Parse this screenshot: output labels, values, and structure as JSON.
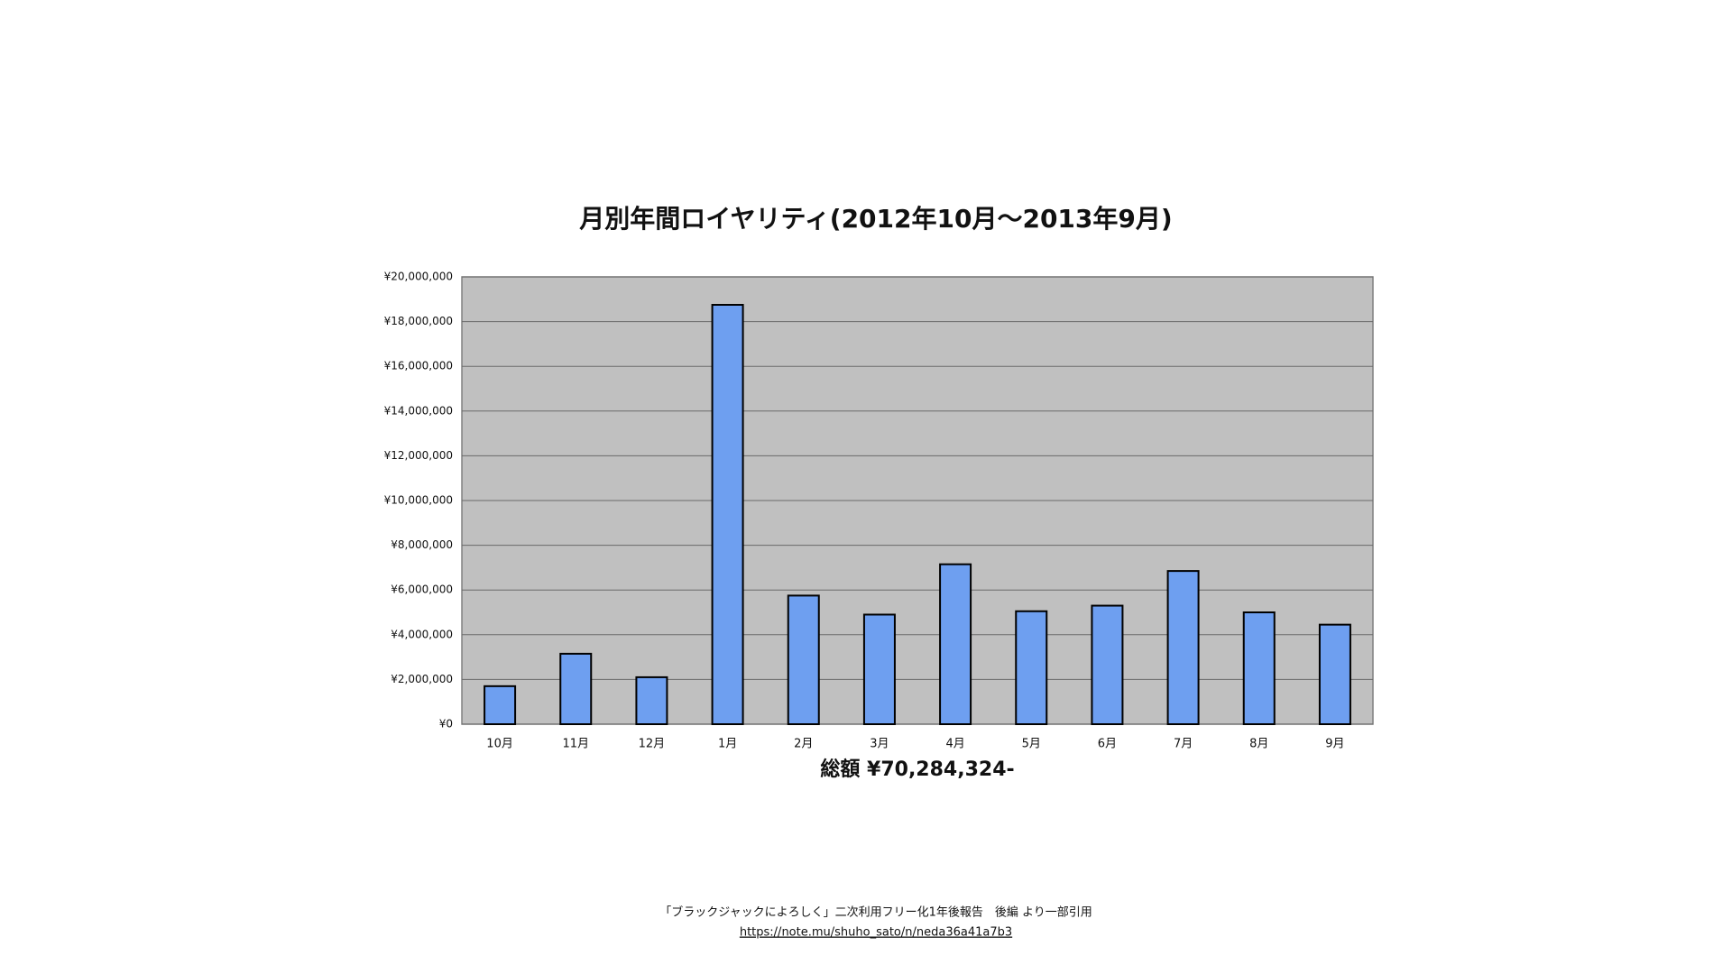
{
  "chart_data": {
    "type": "bar",
    "title": "月別年間ロイヤリティ(2012年10月～2013年9月)",
    "annotation": "総額 ¥70,284,324-",
    "categories": [
      "10月",
      "11月",
      "12月",
      "1月",
      "2月",
      "3月",
      "4月",
      "5月",
      "6月",
      "7月",
      "8月",
      "9月"
    ],
    "values": [
      1700000,
      3150000,
      2100000,
      18750000,
      5750000,
      4900000,
      7150000,
      5050000,
      5300000,
      6850000,
      5000000,
      4450000
    ],
    "color": "#6e9ff0",
    "ylim": [
      0,
      20000000
    ],
    "yticks": [
      {
        "value": 0,
        "label": "¥0"
      },
      {
        "value": 2000000,
        "label": "¥2,000,000"
      },
      {
        "value": 4000000,
        "label": "¥4,000,000"
      },
      {
        "value": 6000000,
        "label": "¥6,000,000"
      },
      {
        "value": 8000000,
        "label": "¥8,000,000"
      },
      {
        "value": 10000000,
        "label": "¥10,000,000"
      },
      {
        "value": 12000000,
        "label": "¥12,000,000"
      },
      {
        "value": 14000000,
        "label": "¥14,000,000"
      },
      {
        "value": 16000000,
        "label": "¥16,000,000"
      },
      {
        "value": 18000000,
        "label": "¥18,000,000"
      },
      {
        "value": 20000000,
        "label": "¥20,000,000"
      }
    ],
    "grid": true
  },
  "footer": {
    "citation": "「ブラックジャックによろしく」二次利用フリー化1年後報告　後編 より一部引用",
    "url": "https://note.mu/shuho_sato/n/neda36a41a7b3"
  }
}
